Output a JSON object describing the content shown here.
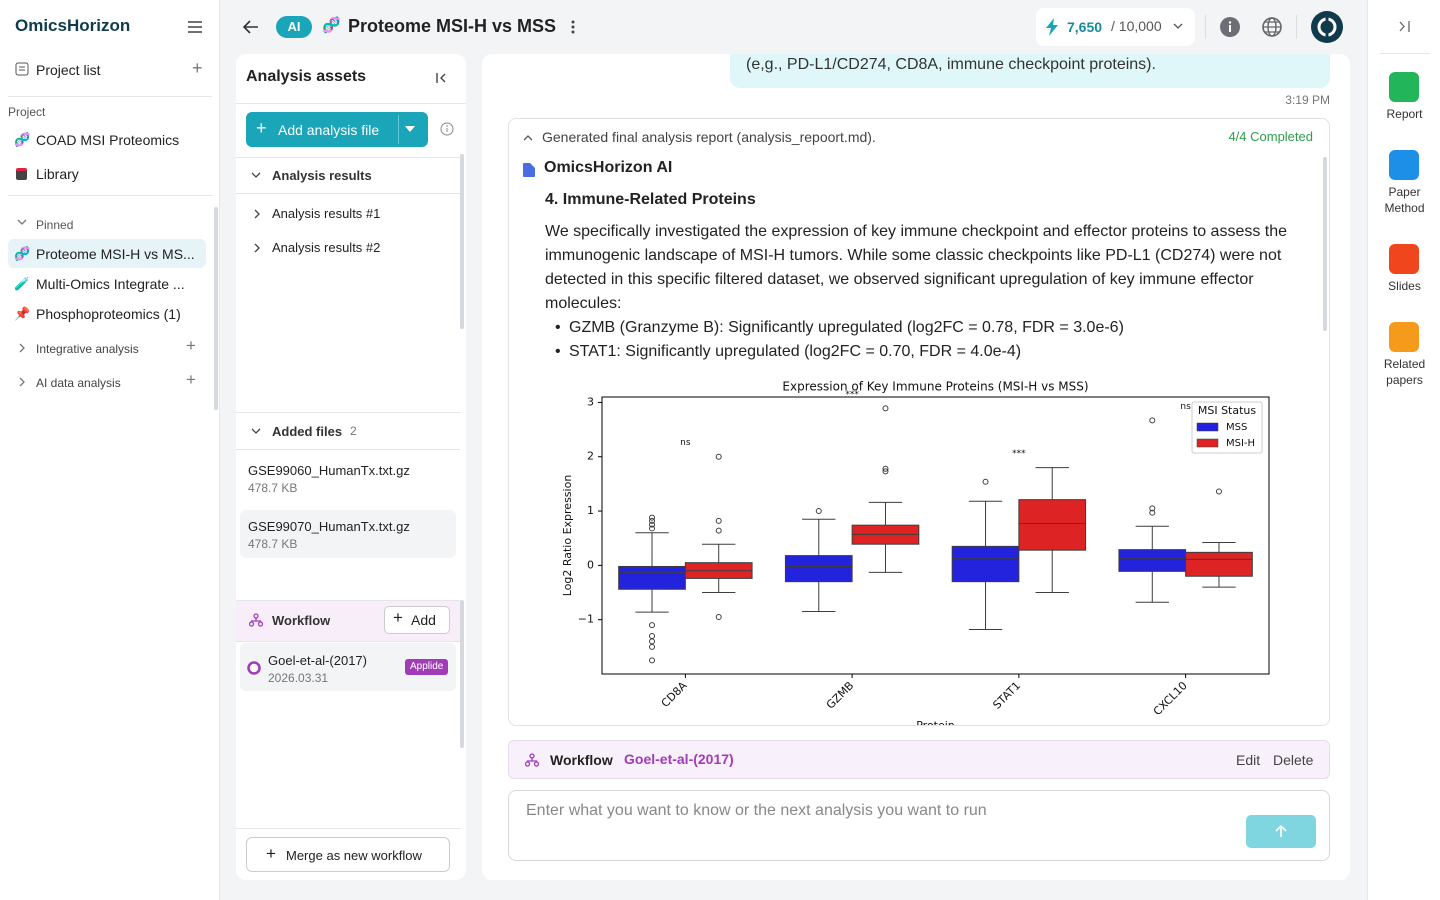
{
  "sidebar": {
    "logo": "OmicsHorizon",
    "project_list": "Project list",
    "project_heading": "Project",
    "projects": [
      "COAD MSI Proteomics",
      "Library"
    ],
    "pinned_heading": "Pinned",
    "pinned": [
      "Proteome MSI-H vs MS...",
      "Multi-Omics Integrate ...",
      "Phosphoproteomics (1)"
    ],
    "groups": [
      "Integrative analysis",
      "AI data analysis"
    ]
  },
  "topbar": {
    "badge": "AI",
    "title": "Proteome MSI-H vs MSS",
    "credits_used": "7,650",
    "credits_total": "/ 10,000"
  },
  "assets": {
    "title": "Analysis assets",
    "add_button": "Add analysis file",
    "results_heading": "Analysis results",
    "results": [
      "Analysis results #1",
      "Analysis results #2"
    ],
    "files_heading": "Added files",
    "files_count": 2,
    "files": [
      {
        "name": "GSE99060_HumanTx.txt.gz",
        "size": "478.7 KB"
      },
      {
        "name": "GSE99070_HumanTx.txt.gz",
        "size": "478.7 KB"
      }
    ],
    "workflow_heading": "Workflow",
    "add": "Add",
    "workflows": [
      {
        "name": "Goel-et-al-(2017)",
        "date": "2026.03.31",
        "badge": "Applide"
      }
    ],
    "merge": "Merge as new workflow"
  },
  "chat": {
    "message": "(e,g., PD-L1/CD274, CD8A, immune checkpoint proteins).",
    "time": "3:19 PM",
    "report_header": "Generated final analysis report (analysis_repoort.md).",
    "status": "4/4 Completed",
    "author": "OmicsHorizon AI",
    "heading": "4. Immune-Related Proteins",
    "paragraph": "We specifically investigated the expression of key immune checkpoint and effector proteins to assess the immunogenic landscape of MSI-H tumors. While some classic checkpoints like PD-L1 (CD274) were not detected in this specific filtered dataset, we observed significant upregulation of key immune effector molecules:",
    "bullets": [
      "GZMB (Granzyme B): Significantly upregulated (log2FC = 0.78, FDR = 3.0e-6)",
      "STAT1: Significantly upregulated (log2FC = 0.70, FDR = 4.0e-4)"
    ],
    "workflow_label": "Workflow",
    "workflow_name": "Goel-et-al-(2017)",
    "edit": "Edit",
    "delete": "Delete",
    "input_placeholder": "Enter what you want to know or the next analysis you want to run"
  },
  "right_rail": {
    "items": [
      "Report",
      "Paper Method",
      "Slides",
      "Related papers"
    ]
  },
  "chart_data": {
    "type": "box",
    "title": "Expression of Key Immune Proteins (MSI-H vs MSS)",
    "ylabel": "Log2 Ratio Expression",
    "xlabel": "Protein",
    "categories": [
      "CD8A",
      "GZMB",
      "STAT1",
      "CXCL10"
    ],
    "ylim": [
      -2,
      3.1
    ],
    "yticks": [
      {
        "value": -1,
        "label": "−1"
      },
      0,
      1,
      2,
      3
    ],
    "legend_title": "MSI Status",
    "annotations": [
      "ns",
      "***",
      "***",
      "ns"
    ],
    "series": [
      {
        "name": "MSS",
        "color": "#2323dd",
        "whislo": [
          -0.86,
          -0.85,
          -1.18,
          -0.68
        ],
        "q1": [
          -0.44,
          -0.3,
          -0.3,
          -0.11
        ],
        "median": [
          -0.13,
          -0.02,
          0.13,
          0.13
        ],
        "q3": [
          -0.02,
          0.18,
          0.35,
          0.29
        ],
        "whishi": [
          0.6,
          0.85,
          1.18,
          0.72
        ],
        "fliers": [
          [
            0.68,
            0.75,
            0.82,
            0.88,
            -1.1,
            -1.3,
            -1.4,
            -1.5,
            -1.75
          ],
          [
            1.0
          ],
          [
            1.54
          ],
          [
            1.05,
            0.97,
            2.67
          ]
        ]
      },
      {
        "name": "MSI-H",
        "color": "#dd2323",
        "whislo": [
          -0.5,
          -0.13,
          -0.5,
          -0.4
        ],
        "q1": [
          -0.24,
          0.39,
          0.28,
          -0.2
        ],
        "median": [
          -0.1,
          0.57,
          0.77,
          0.11
        ],
        "q3": [
          0.05,
          0.74,
          1.21,
          0.24
        ],
        "whishi": [
          0.39,
          1.16,
          1.8,
          0.42
        ],
        "fliers": [
          [
            0.64,
            0.82,
            2.0,
            -0.95
          ],
          [
            1.73,
            1.78,
            2.89
          ],
          [],
          [
            1.36
          ]
        ]
      }
    ]
  }
}
